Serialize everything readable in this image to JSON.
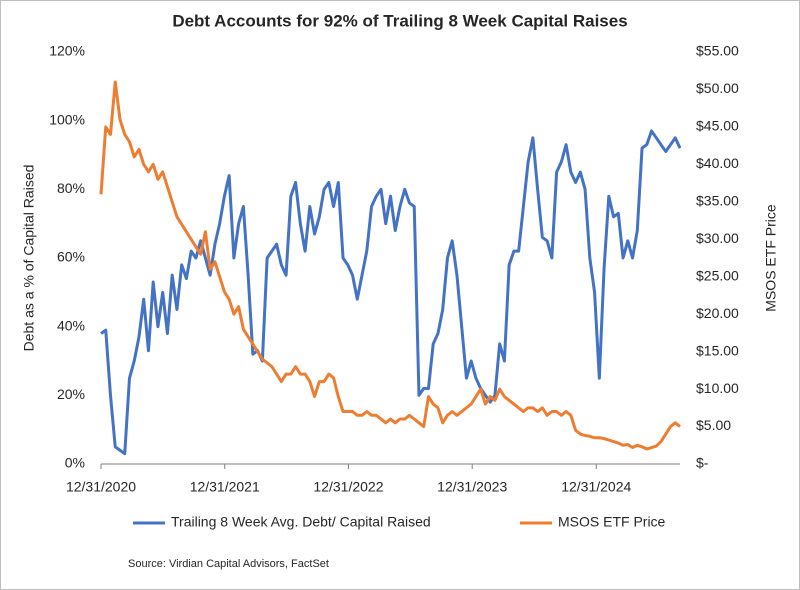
{
  "chart_data": {
    "type": "line",
    "title": "Debt Accounts for 92% of Trailing 8 Week Capital Raises",
    "y_label": "Debt as a % of Capital Raised",
    "y2_label": "MSOS ETF Price",
    "source": "Source: Virdian Capital Advisors, FactSet",
    "legend": "bottom",
    "x": [
      "2020-12-31",
      "2021-01-14",
      "2021-01-28",
      "2021-02-11",
      "2021-02-25",
      "2021-03-11",
      "2021-03-25",
      "2021-04-08",
      "2021-04-22",
      "2021-05-06",
      "2021-05-20",
      "2021-06-03",
      "2021-06-17",
      "2021-07-01",
      "2021-07-15",
      "2021-07-29",
      "2021-08-12",
      "2021-08-26",
      "2021-09-09",
      "2021-09-23",
      "2021-10-07",
      "2021-10-21",
      "2021-11-04",
      "2021-11-18",
      "2021-12-02",
      "2021-12-16",
      "2021-12-30",
      "2022-01-13",
      "2022-01-27",
      "2022-02-10",
      "2022-02-24",
      "2022-03-10",
      "2022-03-24",
      "2022-04-07",
      "2022-04-21",
      "2022-05-05",
      "2022-05-19",
      "2022-06-02",
      "2022-06-16",
      "2022-06-30",
      "2022-07-14",
      "2022-07-28",
      "2022-08-11",
      "2022-08-25",
      "2022-09-08",
      "2022-09-22",
      "2022-10-06",
      "2022-10-20",
      "2022-11-03",
      "2022-11-17",
      "2022-12-01",
      "2022-12-15",
      "2022-12-29",
      "2023-01-12",
      "2023-01-26",
      "2023-02-09",
      "2023-02-23",
      "2023-03-09",
      "2023-03-23",
      "2023-04-06",
      "2023-04-20",
      "2023-05-04",
      "2023-05-18",
      "2023-06-01",
      "2023-06-15",
      "2023-06-29",
      "2023-07-13",
      "2023-07-27",
      "2023-08-10",
      "2023-08-24",
      "2023-09-07",
      "2023-09-21",
      "2023-10-05",
      "2023-10-19",
      "2023-11-02",
      "2023-11-16",
      "2023-11-30",
      "2023-12-14",
      "2023-12-28",
      "2024-01-11",
      "2024-01-25",
      "2024-02-08",
      "2024-02-22",
      "2024-03-07",
      "2024-03-21",
      "2024-04-04",
      "2024-04-18",
      "2024-05-02",
      "2024-05-16",
      "2024-05-30",
      "2024-06-13",
      "2024-06-27",
      "2024-07-11",
      "2024-07-25",
      "2024-08-08",
      "2024-08-22",
      "2024-09-05",
      "2024-09-19",
      "2024-10-03",
      "2024-10-17",
      "2024-10-31",
      "2024-11-14",
      "2024-11-28",
      "2024-12-12",
      "2024-12-26",
      "2025-01-09",
      "2025-01-23",
      "2025-02-06",
      "2025-02-20",
      "2025-03-06",
      "2025-03-20",
      "2025-04-03",
      "2025-04-17",
      "2025-05-01",
      "2025-05-15",
      "2025-05-29",
      "2025-06-12",
      "2025-06-26",
      "2025-07-10",
      "2025-07-24",
      "2025-08-07",
      "2025-08-21",
      "2025-09-04"
    ],
    "series": [
      {
        "name": "Trailing 8 Week Avg. Debt/ Capital Raised",
        "color": "#4472c4",
        "axis": "y",
        "values": [
          38,
          39,
          20,
          5,
          4,
          3,
          25,
          30,
          37,
          48,
          33,
          53,
          40,
          50,
          38,
          55,
          45,
          58,
          54,
          62,
          60,
          65,
          60,
          55,
          64,
          70,
          78,
          84,
          60,
          70,
          75,
          55,
          32,
          33,
          30,
          60,
          62,
          64,
          58,
          55,
          78,
          82,
          70,
          62,
          75,
          67,
          72,
          80,
          82,
          75,
          82,
          60,
          58,
          55,
          48,
          55,
          62,
          75,
          78,
          80,
          70,
          78,
          68,
          75,
          80,
          76,
          75,
          20,
          22,
          22,
          35,
          38,
          45,
          60,
          65,
          55,
          40,
          25,
          30,
          25,
          22,
          20,
          18,
          20,
          35,
          30,
          58,
          62,
          62,
          75,
          88,
          95,
          80,
          66,
          65,
          60,
          85,
          88,
          93,
          85,
          82,
          85,
          80,
          60,
          50,
          25,
          57,
          78,
          72,
          73,
          60,
          65,
          60,
          68,
          92,
          93,
          97,
          95,
          93,
          91,
          93,
          95,
          92
        ]
      },
      {
        "name": "MSOS ETF Price",
        "color": "#ed7d31",
        "axis": "y2",
        "values": [
          36,
          45,
          44,
          51,
          46,
          44,
          43,
          41,
          42,
          40,
          39,
          40,
          38,
          39,
          37,
          35,
          33,
          32,
          31,
          30,
          29,
          28,
          31,
          26,
          27,
          25,
          23,
          22,
          20,
          21,
          18,
          17,
          16,
          15,
          14,
          13.5,
          13,
          12,
          11,
          12,
          12,
          13,
          12,
          12,
          11,
          9,
          11,
          11,
          12,
          11.5,
          9,
          7,
          7,
          7,
          6.5,
          6.5,
          7,
          6.5,
          6.5,
          6,
          5.5,
          6,
          5.5,
          6,
          6,
          6.5,
          6,
          5.5,
          5,
          9,
          8,
          7.5,
          5.5,
          6.5,
          7,
          6.5,
          7,
          7.5,
          8,
          9,
          10,
          8,
          9,
          8.5,
          10,
          9,
          8.5,
          8,
          7.5,
          7,
          7.5,
          7.5,
          7,
          7.5,
          6.5,
          7,
          7,
          6.5,
          7,
          6.5,
          4.5,
          4,
          3.8,
          3.7,
          3.5,
          3.5,
          3.4,
          3.2,
          3,
          2.8,
          2.5,
          2.6,
          2.2,
          2.5,
          2.3,
          2,
          2.2,
          2.4,
          3,
          4,
          5,
          5.5,
          5
        ]
      }
    ],
    "xlim": [
      "2020-12-31",
      "2025-09-04"
    ],
    "xticks": [
      {
        "value": "2020-12-31",
        "label": "12/31/2020"
      },
      {
        "value": "2021-12-31",
        "label": "12/31/2021"
      },
      {
        "value": "2022-12-31",
        "label": "12/31/2022"
      },
      {
        "value": "2023-12-31",
        "label": "12/31/2023"
      },
      {
        "value": "2024-12-31",
        "label": "12/31/2024"
      }
    ],
    "ylim": [
      0,
      120
    ],
    "yticks": [
      {
        "value": 0,
        "label": "0%"
      },
      {
        "value": 20,
        "label": "20%"
      },
      {
        "value": 40,
        "label": "40%"
      },
      {
        "value": 60,
        "label": "60%"
      },
      {
        "value": 80,
        "label": "80%"
      },
      {
        "value": 100,
        "label": "100%"
      },
      {
        "value": 120,
        "label": "120%"
      }
    ],
    "y2lim": [
      0,
      55
    ],
    "y2ticks": [
      {
        "value": 0,
        "label": "$-"
      },
      {
        "value": 5,
        "label": "$5.00"
      },
      {
        "value": 10,
        "label": "$10.00"
      },
      {
        "value": 15,
        "label": "$15.00"
      },
      {
        "value": 20,
        "label": "$20.00"
      },
      {
        "value": 25,
        "label": "$25.00"
      },
      {
        "value": 30,
        "label": "$30.00"
      },
      {
        "value": 35,
        "label": "$35.00"
      },
      {
        "value": 40,
        "label": "$40.00"
      },
      {
        "value": 45,
        "label": "$45.00"
      },
      {
        "value": 50,
        "label": "$50.00"
      },
      {
        "value": 55,
        "label": "$55.00"
      }
    ],
    "grid": false
  }
}
